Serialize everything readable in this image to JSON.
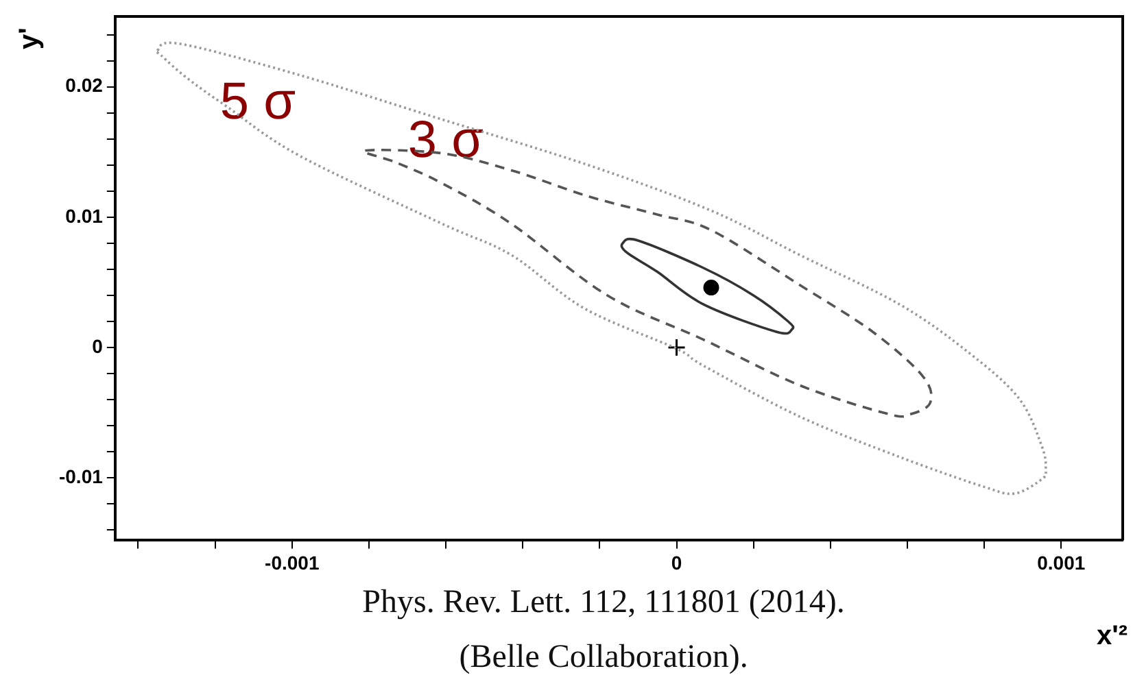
{
  "chart_data": {
    "type": "scatter",
    "xlabel": "x'²",
    "ylabel": "y'",
    "xlim": [
      -0.00146,
      0.00116
    ],
    "ylim": [
      -0.0148,
      0.0254
    ],
    "xticks": [
      {
        "value": -0.0014,
        "label": null
      },
      {
        "value": -0.0012,
        "label": null
      },
      {
        "value": -0.001,
        "label": "-0.001"
      },
      {
        "value": -0.0008,
        "label": null
      },
      {
        "value": -0.0006,
        "label": null
      },
      {
        "value": -0.0004,
        "label": null
      },
      {
        "value": -0.0002,
        "label": null
      },
      0,
      {
        "value": 0.0002,
        "label": null
      },
      {
        "value": 0.0004,
        "label": null
      },
      {
        "value": 0.0006,
        "label": null
      },
      {
        "value": 0.0008,
        "label": null
      },
      {
        "value": 0.001,
        "label": "0.001"
      }
    ],
    "yticks": [
      {
        "value": -0.014,
        "label": null
      },
      {
        "value": -0.012,
        "label": null
      },
      {
        "value": -0.01,
        "label": "-0.01"
      },
      {
        "value": -0.008,
        "label": null
      },
      {
        "value": -0.006,
        "label": null
      },
      {
        "value": -0.004,
        "label": null
      },
      {
        "value": -0.002,
        "label": null
      },
      0,
      {
        "value": 0.002,
        "label": null
      },
      {
        "value": 0.004,
        "label": null
      },
      {
        "value": 0.006,
        "label": null
      },
      {
        "value": 0.008,
        "label": null
      },
      {
        "value": 0.01,
        "label": "0.01"
      },
      {
        "value": 0.012,
        "label": null
      },
      {
        "value": 0.014,
        "label": null
      },
      {
        "value": 0.016,
        "label": null
      },
      {
        "value": 0.018,
        "label": null
      },
      {
        "value": 0.02,
        "label": "0.02"
      },
      {
        "value": 0.022,
        "label": null
      },
      {
        "value": 0.024,
        "label": null
      }
    ],
    "grid": false,
    "legend": false,
    "series": [
      {
        "color": "#000000",
        "marker": "circle",
        "x": [
          9e-05
        ],
        "values": [
          0.0046
        ]
      },
      {
        "color": "#000000",
        "marker": "cross",
        "x": [
          0
        ],
        "values": [
          0
        ]
      }
    ],
    "annotations": [
      "5 σ",
      "3 σ",
      "Phys. Rev. Lett. 112, 111801 (2014).",
      "(Belle Collaboration)."
    ]
  }
}
